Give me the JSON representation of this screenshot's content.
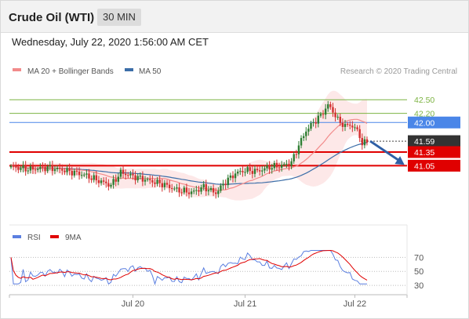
{
  "header": {
    "title": "Crude Oil (WTI)",
    "timeframe": "30 MIN"
  },
  "timestamp": "Wednesday, July 22, 2020 1:56:00 AM CET",
  "legend": {
    "ma20_bb": "MA 20 + Bollinger Bands",
    "ma50": "MA 50"
  },
  "copyright": "Research © 2020 Trading Central",
  "rsi_legend": {
    "rsi": "RSI",
    "ma": "9MA"
  },
  "colors": {
    "bull": "#2e7d32",
    "bear": "#d32f2f",
    "ma20": "#f28b8b",
    "band": "#fde2e2",
    "ma50": "#3c6ea8",
    "resistance": "#7cb342",
    "pivot": "#4a86e8",
    "support": "#e00000",
    "current": "#333333",
    "rsi": "#5b7fe0",
    "rsi_ma": "#e00000"
  },
  "chart_data": [
    {
      "type": "candlestick",
      "name": "Price",
      "ylim": [
        39.8,
        42.9
      ],
      "levels": [
        {
          "value": 42.5,
          "label": "42.50",
          "kind": "resistance"
        },
        {
          "value": 42.2,
          "label": "42.20",
          "kind": "resistance"
        },
        {
          "value": 42.0,
          "label": "42.00",
          "kind": "pivot"
        },
        {
          "value": 41.59,
          "label": "41.59",
          "kind": "current"
        },
        {
          "value": 41.35,
          "label": "41.35",
          "kind": "support"
        },
        {
          "value": 41.05,
          "label": "41.05",
          "kind": "support"
        }
      ],
      "x_ticks": [
        {
          "index": 50,
          "label": "Jul 20"
        },
        {
          "index": 96,
          "label": "Jul 21"
        },
        {
          "index": 141,
          "label": "Jul 22"
        }
      ],
      "forecast_arrow": {
        "from": [
          146,
          41.59
        ],
        "to": [
          162,
          41.05
        ]
      },
      "overlays": [
        "MA 20 + Bollinger Bands",
        "MA 50"
      ]
    },
    {
      "type": "line",
      "name": "RSI",
      "ylim": [
        20,
        85
      ],
      "ref_lines": [
        {
          "value": 70,
          "label": "70"
        },
        {
          "value": 50,
          "label": "50"
        },
        {
          "value": 30,
          "label": "30"
        }
      ],
      "series": [
        "RSI",
        "9MA"
      ]
    }
  ]
}
